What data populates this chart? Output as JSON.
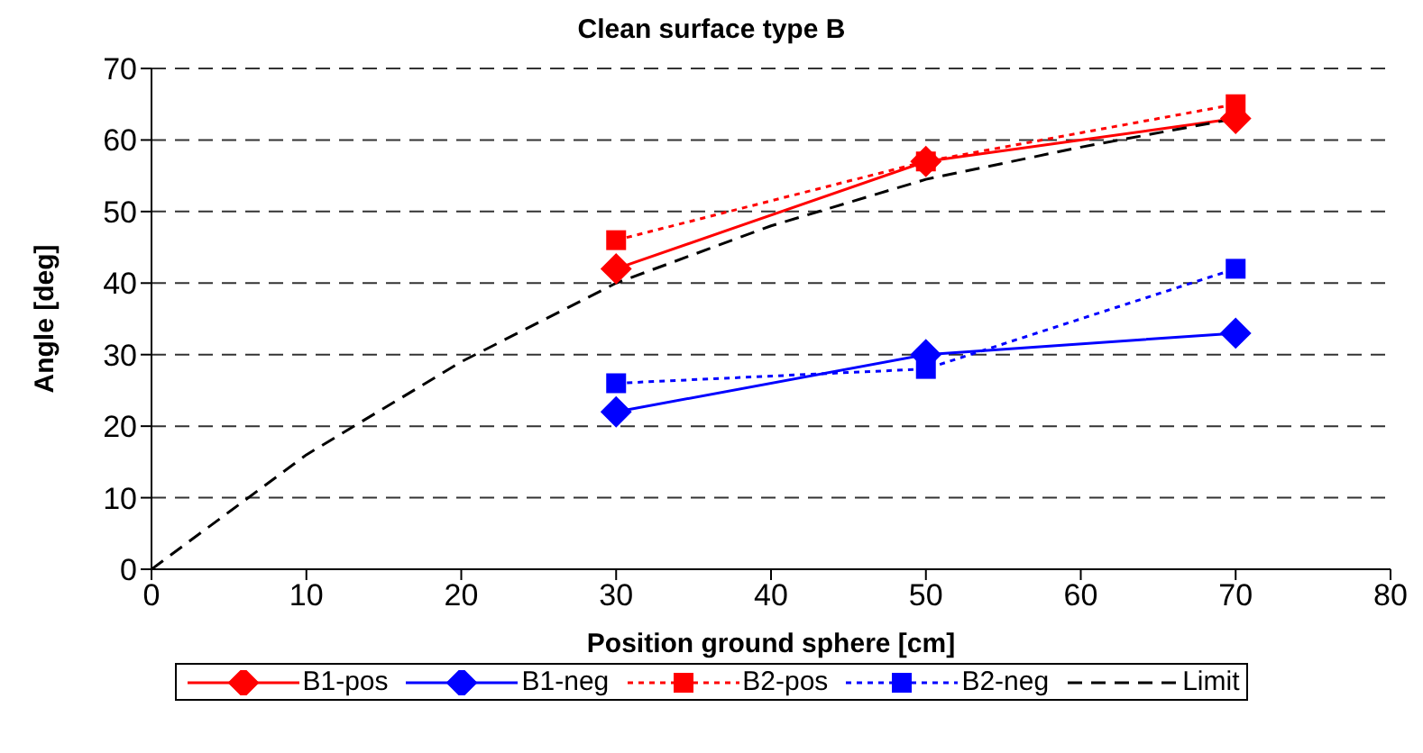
{
  "chart_data": {
    "type": "line",
    "title": "Clean surface type B",
    "xlabel": "Position ground sphere [cm]",
    "ylabel": "Angle [deg]",
    "xlim": [
      0,
      80
    ],
    "xticks": [
      0,
      10,
      20,
      30,
      40,
      50,
      60,
      70,
      80
    ],
    "ylim": [
      0,
      70
    ],
    "yticks": [
      0,
      10,
      20,
      30,
      40,
      50,
      60,
      70
    ],
    "grid": "y",
    "legend": "bottom",
    "series": [
      {
        "name": "B1-pos",
        "color": "#ff0000",
        "marker": "diamond",
        "line_style": "solid",
        "x": [
          30,
          50,
          70
        ],
        "values": [
          42,
          57,
          63
        ]
      },
      {
        "name": "B1-neg",
        "color": "#0000ff",
        "marker": "diamond",
        "line_style": "solid",
        "x": [
          30,
          50,
          70
        ],
        "values": [
          22,
          30,
          33
        ]
      },
      {
        "name": "B2-pos",
        "color": "#ff0000",
        "marker": "square",
        "line_style": "dotted",
        "x": [
          30,
          50,
          70
        ],
        "values": [
          46,
          57,
          65
        ]
      },
      {
        "name": "B2-neg",
        "color": "#0000ff",
        "marker": "square",
        "line_style": "dotted",
        "x": [
          30,
          50,
          70
        ],
        "values": [
          26,
          28,
          42
        ]
      },
      {
        "name": "Limit",
        "color": "#000000",
        "marker": "none",
        "line_style": "dashed",
        "x": [
          0,
          10,
          20,
          30,
          40,
          50,
          60,
          70
        ],
        "values": [
          0,
          16,
          29,
          40,
          48,
          54.5,
          59,
          63
        ]
      }
    ]
  }
}
